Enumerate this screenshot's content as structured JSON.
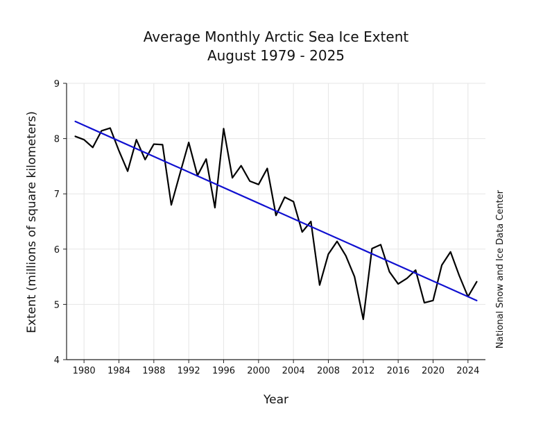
{
  "chart_data": {
    "type": "line",
    "title": "Average Monthly Arctic Sea Ice Extent",
    "subtitle": "August 1979 - 2025",
    "xlabel": "Year",
    "ylabel": "Extent (millions of square kilometers)",
    "credit": "National Snow and Ice Data Center",
    "xlim": [
      1978,
      2026
    ],
    "ylim": [
      4,
      9
    ],
    "x_ticks": [
      1980,
      1984,
      1988,
      1992,
      1996,
      2000,
      2004,
      2008,
      2012,
      2016,
      2020,
      2024
    ],
    "y_ticks": [
      4,
      5,
      6,
      7,
      8,
      9
    ],
    "grid": true,
    "series": [
      {
        "color": "#000000",
        "x": [
          1979,
          1980,
          1981,
          1982,
          1983,
          1984,
          1985,
          1986,
          1987,
          1988,
          1989,
          1990,
          1991,
          1992,
          1993,
          1994,
          1995,
          1996,
          1997,
          1998,
          1999,
          2000,
          2001,
          2002,
          2003,
          2004,
          2005,
          2006,
          2007,
          2008,
          2009,
          2010,
          2011,
          2012,
          2013,
          2014,
          2015,
          2016,
          2017,
          2018,
          2019,
          2020,
          2021,
          2022,
          2023,
          2024,
          2025
        ],
        "values": [
          8.04,
          7.98,
          7.84,
          8.14,
          8.19,
          7.78,
          7.41,
          7.98,
          7.62,
          7.9,
          7.89,
          6.8,
          7.37,
          7.93,
          7.33,
          7.63,
          6.75,
          8.18,
          7.29,
          7.51,
          7.23,
          7.17,
          7.46,
          6.61,
          6.94,
          6.86,
          6.31,
          6.5,
          5.35,
          5.91,
          6.14,
          5.88,
          5.5,
          4.73,
          6.01,
          6.08,
          5.59,
          5.37,
          5.47,
          5.62,
          5.03,
          5.07,
          5.71,
          5.95,
          5.52,
          5.14,
          5.41
        ]
      },
      {
        "color": "#1010d0",
        "x": [
          1979,
          2025
        ],
        "values": [
          8.31,
          5.07
        ]
      }
    ]
  }
}
